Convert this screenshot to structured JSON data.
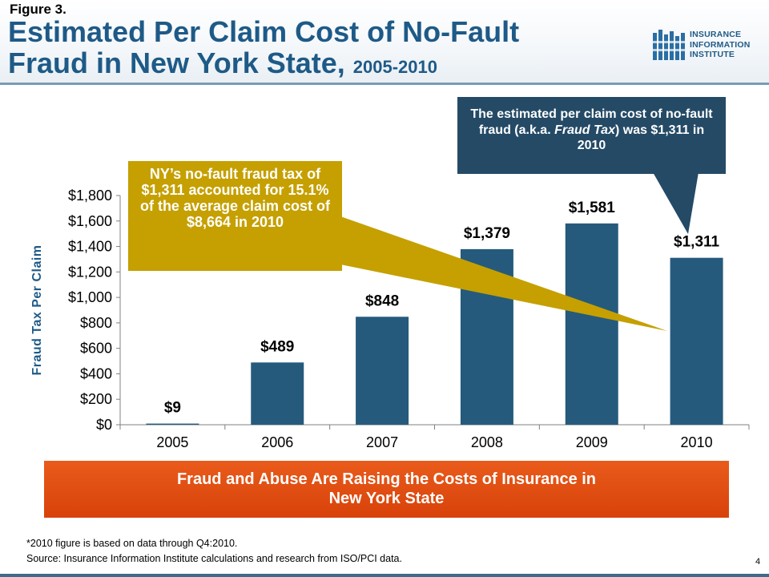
{
  "header": {
    "figure_label": "Figure 3.",
    "title_line1": "Estimated Per Claim Cost of No-Fault",
    "title_line2": "Fraud in New York State, ",
    "title_years": "2005-2010"
  },
  "logo": {
    "line1": "INSURANCE",
    "line2": "INFORMATION",
    "line3": "INSTITUTE",
    "color": "#1e5a87"
  },
  "chart_data": {
    "type": "bar",
    "categories": [
      "2005",
      "2006",
      "2007",
      "2008",
      "2009",
      "2010"
    ],
    "values": [
      9,
      489,
      848,
      1379,
      1581,
      1311
    ],
    "data_labels": [
      "$9",
      "$489",
      "$848",
      "$1,379",
      "$1,581",
      "$1,311"
    ],
    "ylabel": "Fraud Tax Per Claim",
    "ylim": [
      0,
      1800
    ],
    "yticks": [
      0,
      200,
      400,
      600,
      800,
      1000,
      1200,
      1400,
      1600,
      1800
    ],
    "ytick_labels": [
      "$0",
      "$200",
      "$400",
      "$600",
      "$800",
      "$1,000",
      "$1,200",
      "$1,400",
      "$1,600",
      "$1,800"
    ],
    "bar_color": "#255a7c",
    "ylabel_color": "#1e5a87",
    "grid": false
  },
  "callouts": {
    "gold": "NY’s no-fault fraud tax of $1,311 accounted for 15.1% of the average claim cost of $8,664 in 2010",
    "gold_color": "#c5a000",
    "blue_part1": "The estimated per claim cost of no-fault fraud (a.k.a. ",
    "blue_italic": "Fraud Tax",
    "blue_part2": ") was $1,311 in 2010",
    "blue_color": "#244a66"
  },
  "banner": {
    "line1": "Fraud and Abuse Are Raising the Costs of Insurance in",
    "line2": "New York State",
    "color": "#e0500f"
  },
  "footnote": {
    "line1": "*2010 figure is based on data through Q4:2010.",
    "line2": "Source: Insurance Information Institute calculations and research from ISO/PCI data."
  },
  "page_number": "4"
}
